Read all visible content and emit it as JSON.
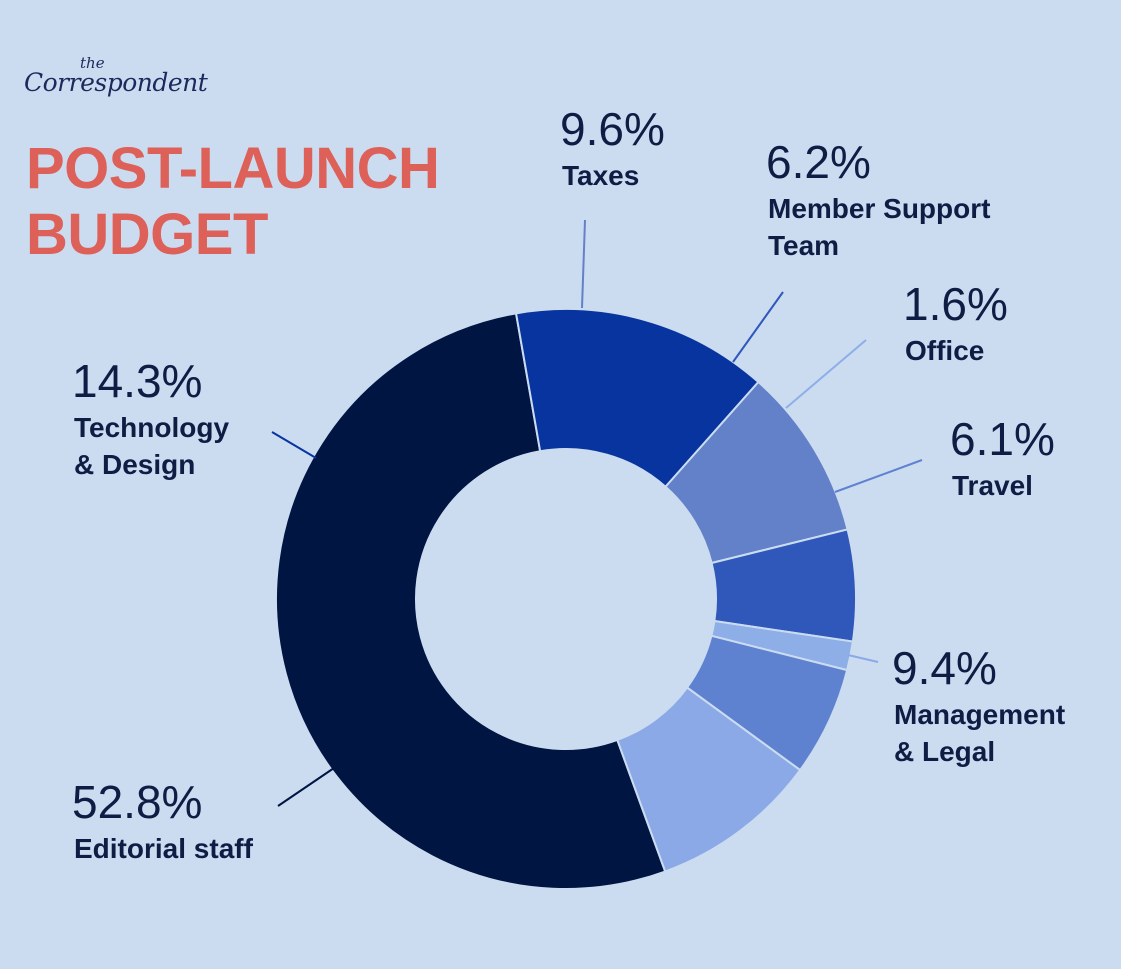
{
  "brand": {
    "logo_small": "the",
    "logo_main": "Correspondent"
  },
  "header": {
    "title_line1": "POST-LAUNCH",
    "title_line2": "BUDGET"
  },
  "chart_data": {
    "type": "pie",
    "title": "POST-LAUNCH BUDGET",
    "donut": true,
    "slices": [
      {
        "label": "Editorial staff",
        "value": 52.8,
        "pct_label": "52.8%",
        "color": "#001542",
        "line_color": "#001542"
      },
      {
        "label": "Technology & Design",
        "value": 14.3,
        "pct_label": "14.3%",
        "color": "#0834a0",
        "line_color": "#0834a0"
      },
      {
        "label": "Taxes",
        "value": 9.6,
        "pct_label": "9.6%",
        "color": "#6281c8",
        "line_color": "#6281c8"
      },
      {
        "label": "Member Support Team",
        "value": 6.2,
        "pct_label": "6.2%",
        "color": "#2f58ba",
        "line_color": "#2f58ba"
      },
      {
        "label": "Office",
        "value": 1.6,
        "pct_label": "1.6%",
        "color": "#8eaee8",
        "line_color": "#8eaee8"
      },
      {
        "label": "Travel",
        "value": 6.1,
        "pct_label": "6.1%",
        "color": "#5e82cf",
        "line_color": "#5e82cf"
      },
      {
        "label": "Management & Legal",
        "value": 9.4,
        "pct_label": "9.4%",
        "color": "#8ba9e6",
        "line_color": "#8ba9e6"
      }
    ]
  }
}
